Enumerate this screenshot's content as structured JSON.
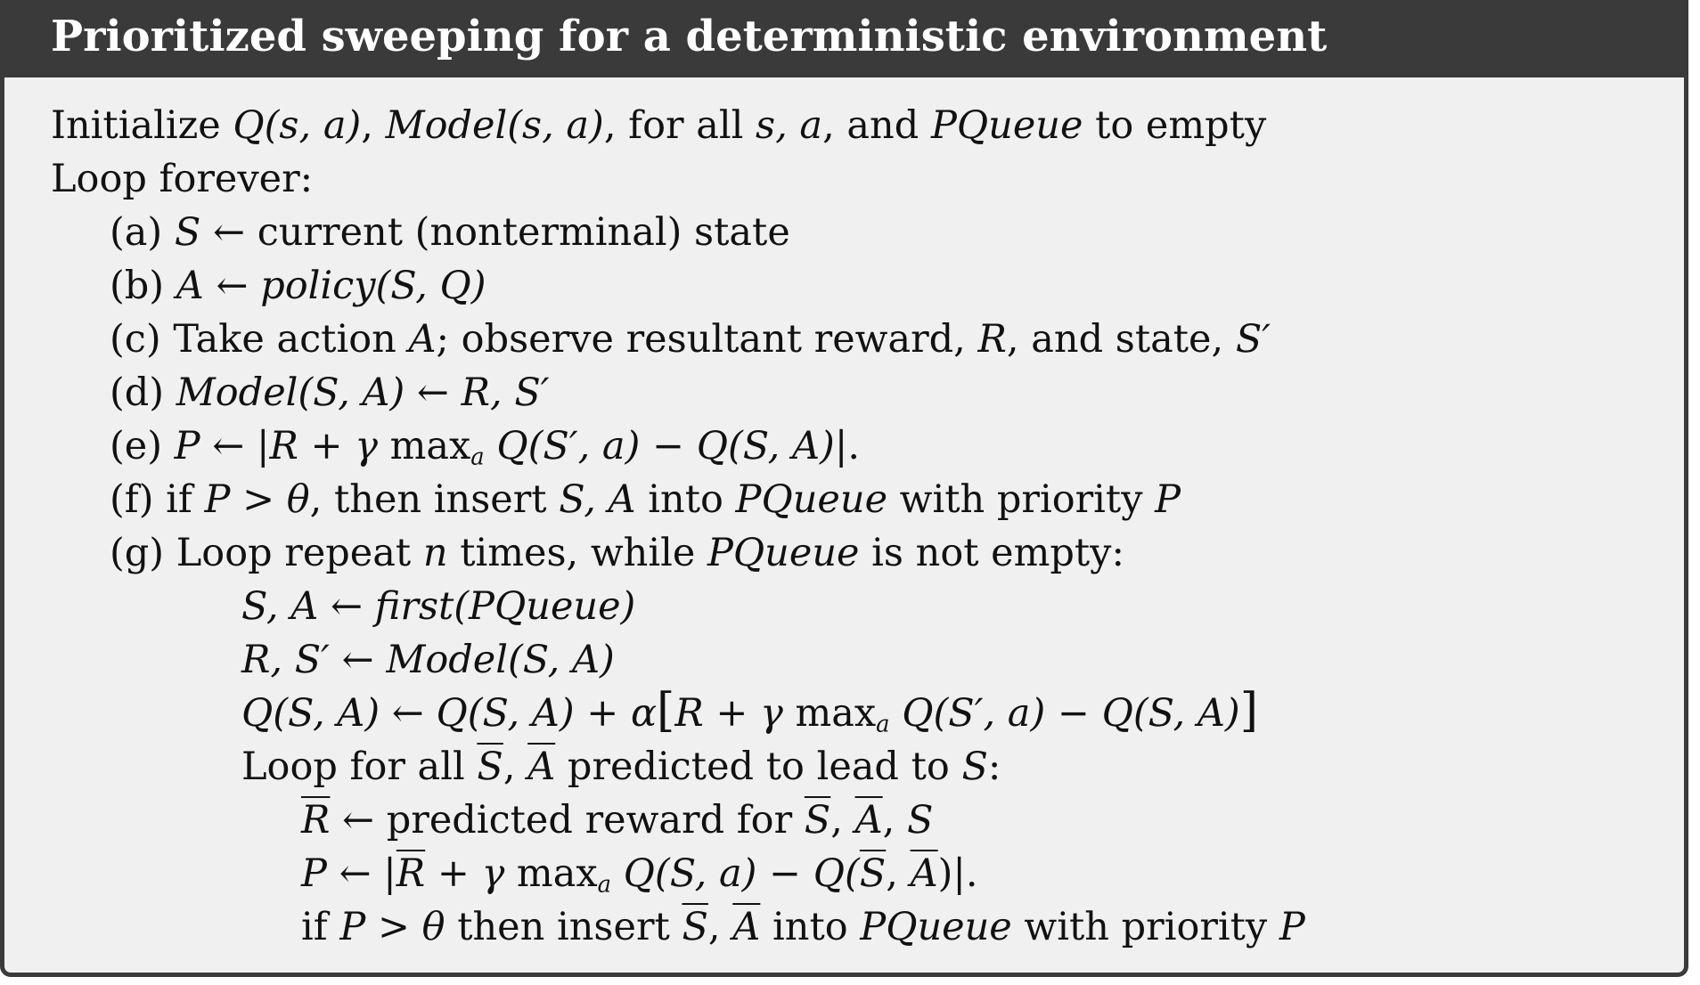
{
  "title": "Prioritized sweeping for a deterministic environment",
  "lines": {
    "init": {
      "t1": "Initialize ",
      "m1": "Q(s, a)",
      "t2": ", ",
      "m2": "Model(s, a)",
      "t3": ", for all ",
      "m3": "s, a",
      "t4": ", and ",
      "m4": "PQueue",
      "t5": " to empty"
    },
    "loop": {
      "t1": "Loop forever:"
    },
    "a": {
      "label": "(a) ",
      "m1": "S",
      "t1": " ← current (nonterminal) state"
    },
    "b": {
      "label": "(b) ",
      "m1": "A",
      "t1": " ← ",
      "m2": "policy(S, Q)"
    },
    "c": {
      "label": "(c) ",
      "t1": "Take action ",
      "m1": "A",
      "t2": "; observe resultant reward, ",
      "m2": "R",
      "t3": ", and state, ",
      "m3": "S′"
    },
    "d": {
      "label": "(d) ",
      "m1": "Model(S, A)",
      "t1": " ← ",
      "m2": "R, S′"
    },
    "e": {
      "label": "(e) ",
      "m1": "P",
      "t1": " ← |",
      "m2": "R",
      "t2": " + ",
      "m3": "γ",
      "t3": " max",
      "sub1": "a",
      "t4": " ",
      "m4": "Q(S′, a) − Q(S, A)",
      "t5": "|."
    },
    "f": {
      "label": "(f) ",
      "t1": "if ",
      "m1": "P > θ",
      "t2": ", then insert ",
      "m2": "S, A",
      "t3": " into ",
      "m3": "PQueue",
      "t4": " with priority ",
      "m4": "P"
    },
    "g": {
      "label": "(g) ",
      "t1": "Loop repeat ",
      "m1": "n",
      "t2": " times, while ",
      "m2": "PQueue",
      "t3": " is not empty:"
    },
    "g1": {
      "m1": "S, A",
      "t1": " ← ",
      "m2": "first(PQueue)"
    },
    "g2": {
      "m1": "R, S′",
      "t1": " ← ",
      "m2": "Model(S, A)"
    },
    "g3": {
      "m1": "Q(S, A)",
      "t1": " ← ",
      "m2": "Q(S, A)",
      "t2": " + ",
      "m3": "α",
      "b1": "[",
      "m4": "R",
      "t3": " + ",
      "m5": "γ",
      "t4": " max",
      "sub1": "a",
      "t5": " ",
      "m6": "Q(S′, a) − Q(S, A)",
      "b2": "]"
    },
    "g4": {
      "t1": "Loop for all ",
      "m1": "S",
      "t2": ", ",
      "m2": "A",
      "t3": " predicted to lead to ",
      "m3": "S",
      "t4": ":"
    },
    "g5": {
      "m1": "R",
      "t1": " ← predicted reward for ",
      "m2": "S",
      "t2": ", ",
      "m3": "A",
      "t3": ", ",
      "m4": "S"
    },
    "g6": {
      "m1": "P",
      "t1": " ← |",
      "m2": "R",
      "t2": " + ",
      "m3": "γ",
      "t3": " max",
      "sub1": "a",
      "t4": " ",
      "m4": "Q(S, a) − Q(",
      "m5": "S",
      "t5": ", ",
      "m6": "A",
      "t6": ")|."
    },
    "g7": {
      "t1": "if ",
      "m1": "P > θ",
      "t2": " then insert ",
      "m2": "S",
      "t3": ", ",
      "m3": "A",
      "t4": " into ",
      "m4": "PQueue",
      "t5": " with priority ",
      "m5": "P"
    }
  }
}
